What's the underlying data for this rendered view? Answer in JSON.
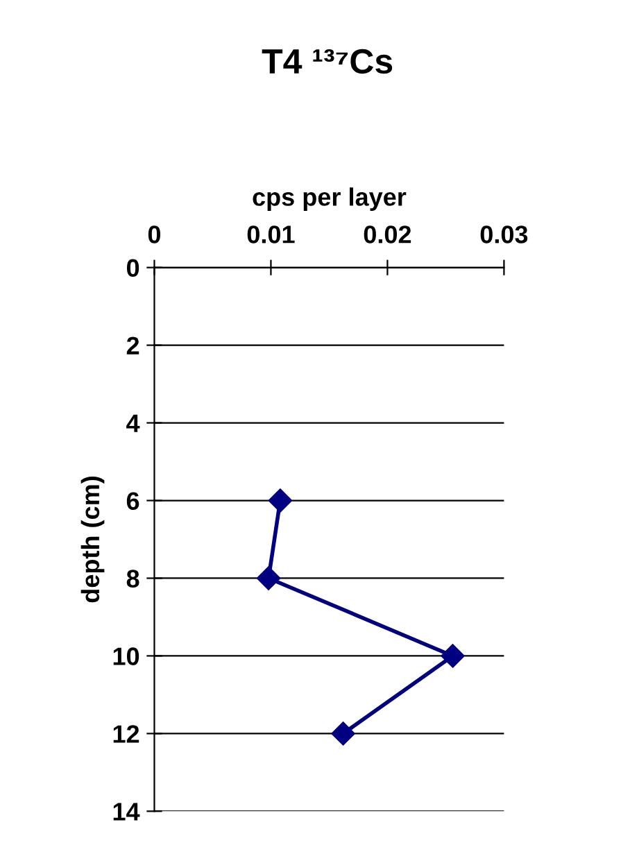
{
  "chart_data": {
    "type": "line",
    "title": "T4 ¹³⁷Cs",
    "xlabel": "cps per layer",
    "ylabel": "depth (cm)",
    "x": [
      0.0108,
      0.0098,
      0.0256,
      0.0162
    ],
    "series": [
      {
        "color": "#000080",
        "values": [
          6,
          8,
          10,
          12
        ]
      }
    ],
    "xlim": [
      0,
      0.03
    ],
    "xticks": [
      0,
      0.01,
      0.02,
      0.03
    ],
    "ylim": [
      14,
      0
    ],
    "yticks": [
      0,
      2,
      4,
      6,
      8,
      10,
      12,
      14
    ],
    "grid": "y",
    "marker": "diamond",
    "line_style": "solid",
    "legend": false
  }
}
